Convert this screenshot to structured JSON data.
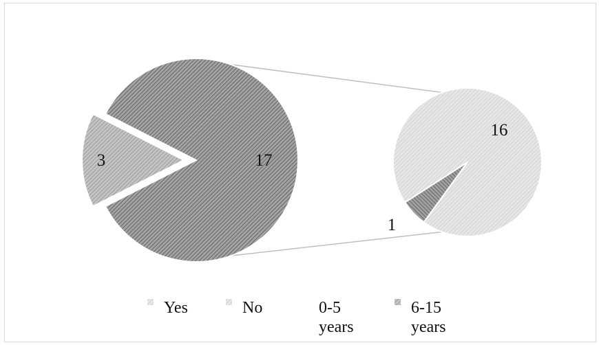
{
  "chart_data": {
    "type": "pie",
    "subtype": "pie-of-pie",
    "primary_pie": {
      "slices": [
        {
          "label": "3",
          "value": 3,
          "exploded": true
        },
        {
          "label": "17",
          "value": 17
        }
      ]
    },
    "secondary_pie": {
      "slices": [
        {
          "label": "1",
          "value": 1
        },
        {
          "label": "16",
          "value": 16
        }
      ]
    },
    "legend": {
      "placement": "bottom",
      "entries": [
        "Yes",
        "No",
        "0-5 years",
        "6-15 years"
      ],
      "lines": [
        [
          "Yes"
        ],
        [
          "No"
        ],
        [
          "0-5",
          "years"
        ],
        [
          "6-15",
          "years"
        ]
      ]
    },
    "colors": {
      "primary_large": "#8c8c8c",
      "primary_small": "#b3b3b3",
      "secondary_large": "#dcdcdc",
      "secondary_small": "#8f8f8f",
      "connector": "#bfbfbf",
      "frame": "#d9d9d9"
    }
  }
}
